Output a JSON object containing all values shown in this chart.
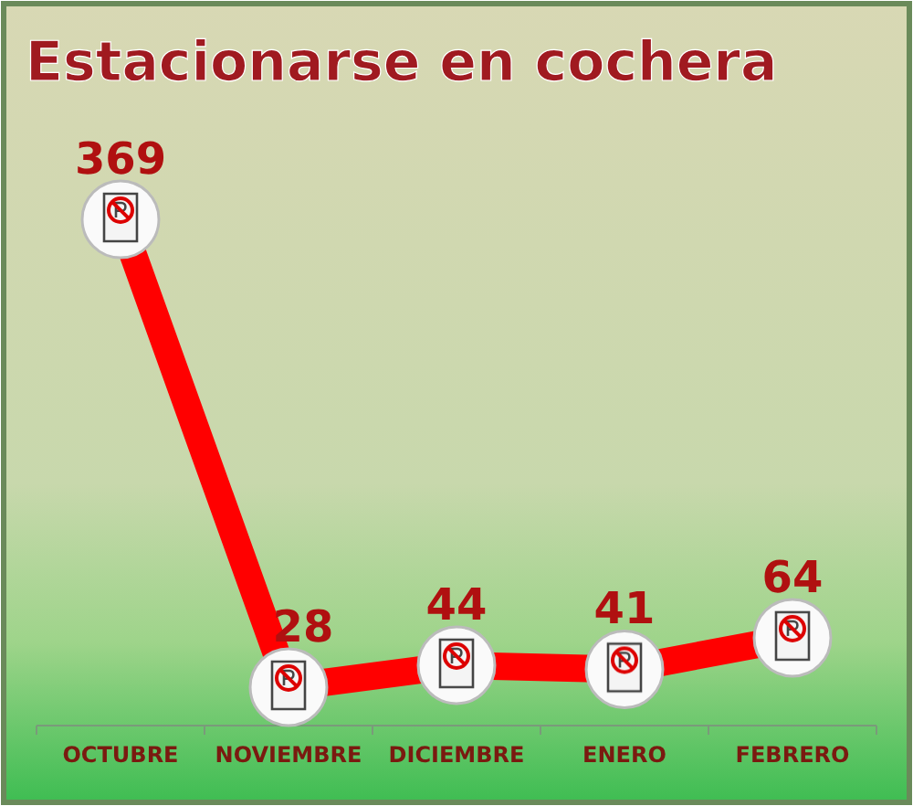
{
  "chart_data": {
    "type": "line",
    "title": "Estacionarse en cochera",
    "categories": [
      "OCTUBRE",
      "NOVIEMBRE",
      "DICIEMBRE",
      "ENERO",
      "FEBRERO"
    ],
    "series": [
      {
        "color": "#ff0000",
        "values": [
          369,
          28,
          44,
          41,
          64
        ]
      }
    ],
    "data_labels": true,
    "marker": "circle"
  }
}
